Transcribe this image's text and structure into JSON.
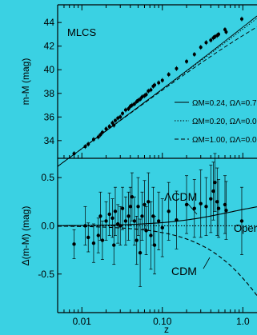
{
  "chart_data": [
    {
      "type": "scatter",
      "panel": "top",
      "title": "MLCS",
      "xlabel": "",
      "ylabel": "m-M (mag)",
      "xscale": "log",
      "xlim": [
        0.005,
        1.5
      ],
      "ylim": [
        32.5,
        45.5
      ],
      "yticks": [
        34,
        36,
        38,
        40,
        42,
        44
      ],
      "legend_position": "right",
      "legend": [
        {
          "label": "ΩM=0.24, ΩΛ=0.7",
          "style": "solid"
        },
        {
          "label": "ΩM=0.20, ΩΛ=0.0",
          "style": "dotted"
        },
        {
          "label": "ΩM=1.00, ΩΛ=0.0",
          "style": "dashed"
        }
      ],
      "points": {
        "x": [
          0.008,
          0.011,
          0.012,
          0.014,
          0.016,
          0.017,
          0.018,
          0.02,
          0.022,
          0.024,
          0.025,
          0.026,
          0.028,
          0.03,
          0.032,
          0.035,
          0.038,
          0.04,
          0.042,
          0.045,
          0.048,
          0.05,
          0.053,
          0.056,
          0.06,
          0.063,
          0.067,
          0.072,
          0.077,
          0.08,
          0.09,
          0.1,
          0.12,
          0.15,
          0.2,
          0.25,
          0.3,
          0.35,
          0.4,
          0.43,
          0.45,
          0.48,
          0.5,
          0.6,
          0.62,
          0.97
        ],
        "y": [
          32.9,
          33.5,
          33.7,
          34.1,
          34.3,
          34.5,
          34.7,
          35.0,
          35.2,
          35.5,
          35.3,
          35.7,
          35.9,
          36.0,
          36.3,
          36.6,
          36.7,
          36.9,
          37.0,
          37.1,
          37.3,
          37.4,
          37.5,
          37.7,
          37.8,
          37.9,
          38.2,
          38.3,
          38.6,
          38.7,
          38.9,
          39.1,
          39.6,
          40.1,
          40.7,
          41.3,
          41.9,
          42.3,
          42.5,
          42.7,
          42.8,
          42.9,
          43.0,
          43.4,
          43.2,
          44.3
        ]
      }
    },
    {
      "type": "scatter",
      "panel": "bottom",
      "xlabel": "z",
      "ylabel": "Δ(m-M) (mag)",
      "xscale": "log",
      "xlim": [
        0.005,
        1.5
      ],
      "ylim": [
        -0.9,
        0.7
      ],
      "xtick_labels": [
        "0.01",
        "0.10",
        "1.0"
      ],
      "yticks": [
        -0.5,
        0.0,
        0.5
      ],
      "annotations": [
        "ΛCDM",
        "CDM",
        "Open"
      ],
      "points": {
        "x": [
          0.008,
          0.011,
          0.012,
          0.014,
          0.016,
          0.017,
          0.018,
          0.02,
          0.022,
          0.024,
          0.025,
          0.026,
          0.028,
          0.03,
          0.032,
          0.035,
          0.038,
          0.04,
          0.042,
          0.045,
          0.048,
          0.05,
          0.053,
          0.056,
          0.06,
          0.063,
          0.067,
          0.072,
          0.077,
          0.08,
          0.09,
          0.1,
          0.12,
          0.15,
          0.2,
          0.25,
          0.3,
          0.35,
          0.4,
          0.43,
          0.45,
          0.48,
          0.5,
          0.6,
          0.62,
          0.97
        ],
        "y": [
          -0.19,
          0.0,
          -0.12,
          -0.18,
          -0.1,
          0.1,
          -0.15,
          0.05,
          0.12,
          0.08,
          -0.2,
          0.15,
          0.02,
          0.0,
          0.18,
          0.05,
          0.1,
          0.2,
          0.3,
          0.05,
          -0.15,
          0.2,
          -0.28,
          0.1,
          0.22,
          -0.05,
          0.25,
          -0.1,
          0.1,
          -0.2,
          0.05,
          -0.02,
          0.15,
          0.06,
          0.22,
          0.18,
          0.23,
          0.2,
          0.28,
          0.36,
          0.45,
          0.25,
          0.18,
          0.22,
          0.16,
          0.05
        ],
        "err": [
          0.15,
          0.2,
          0.15,
          0.2,
          0.18,
          0.25,
          0.2,
          0.2,
          0.22,
          0.2,
          0.2,
          0.25,
          0.2,
          0.2,
          0.22,
          0.25,
          0.25,
          0.2,
          0.25,
          0.25,
          0.25,
          0.3,
          0.35,
          0.25,
          0.25,
          0.25,
          0.3,
          0.35,
          0.3,
          0.3,
          0.3,
          0.3,
          0.3,
          0.3,
          0.3,
          0.3,
          0.35,
          0.3,
          0.35,
          0.3,
          0.3,
          0.35,
          0.3,
          0.3,
          0.3,
          0.35
        ]
      }
    }
  ]
}
